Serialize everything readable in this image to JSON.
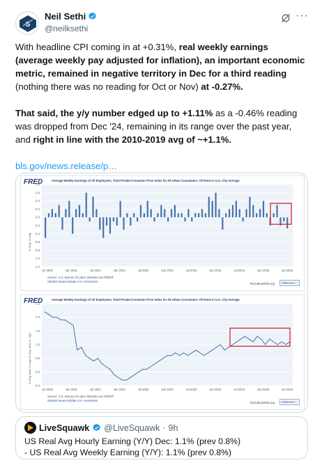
{
  "author": {
    "name": "Neil Sethi",
    "handle": "@neilksethi"
  },
  "tweet": {
    "p1": [
      {
        "t": "With headline CPI coming in at +0.31%, ",
        "b": false
      },
      {
        "t": "real weekly earnings (average weekly pay adjusted for inflation), an important economic metric, remained in negative territory in Dec for a third reading",
        "b": true
      },
      {
        "t": " (nothing there was no reading for Oct or Nov) ",
        "b": false
      },
      {
        "t": "at -0.27%.",
        "b": true
      }
    ],
    "p2": [
      {
        "t": "That said, the y/y number edged up to +1.11%",
        "b": true
      },
      {
        "t": " as a -0.46% reading was dropped from Dec '24, remaining in its range over the past year, and ",
        "b": false
      },
      {
        "t": "right in line with the 2010-2019 avg of ~+1.1%.",
        "b": true
      }
    ],
    "link": "bls.gov/news.release/p…"
  },
  "charts": {
    "logo": "FRED",
    "chart1": {
      "title": "Average Weekly Earnings of All Employees, Total Private-Consumer Price Index for All Urban Consumers: All Items in U.S. City Average",
      "ylabel": "% Chg. % Chg.",
      "yticks": [
        "0.8",
        "0.6",
        "0.4",
        "0.2",
        "0.0",
        "-0.2",
        "-0.4",
        "-0.6",
        "-0.8",
        "-1.0",
        "-1.2"
      ],
      "xticks": [
        "Jul 2020",
        "Jan 2021",
        "Jul 2021",
        "Jan 2022",
        "Jul 2022",
        "Jan 2023",
        "Jul 2023",
        "Jan 2024",
        "Jul 2024",
        "Jan 2025",
        "Jul 2025"
      ],
      "source": "Source: U.S. Bureau of Labor Statistics via FRED®",
      "recession": "Shaded areas indicate U.S. recessions",
      "url": "fred.stlouisfed.org",
      "fullscreen": "Fullscreen ⛶",
      "highlight_color": "#d9262c",
      "bar_color": "#4572a7"
    },
    "chart2": {
      "title": "Average Weekly Earnings of All Employees, Total Private-Consumer Price Index for All Urban Consumers: All Items in U.S. City Average",
      "ylabel": "% Chg. from Yr. Ago-% Chg. from Yr. Ago",
      "yticks": [
        "2.5",
        "2.0",
        "1.5",
        "1.0",
        "0.5",
        "0.0",
        "-0.5"
      ],
      "xticks": [
        "Jul 2020",
        "Jan 2021",
        "Jul 2021",
        "Jan 2022",
        "Jul 2022",
        "Jan 2023",
        "Jul 2023",
        "Jan 2024",
        "Jul 2024",
        "Jan 2025",
        "Jul 2025"
      ],
      "source": "Source: U.S. Bureau of Labor Statistics via FRED®",
      "recession": "Shaded areas indicate U.S. recessions",
      "url": "fred.stlouisfed.org",
      "fullscreen": "Fullscreen ⛶",
      "line_color": "#4572a7",
      "highlight_color": "#d9262c"
    }
  },
  "chart_data": [
    {
      "type": "bar",
      "title": "Average Weekly Earnings of All Employees, Total Private-Consumer Price Index for All Urban Consumers: All Items in U.S. City Average",
      "ylabel": "% Chg. % Chg.",
      "ylim": [
        -1.2,
        0.8
      ],
      "series": [
        {
          "values": [
            -0.5,
            0.1,
            0.2,
            0.1,
            0.3,
            -0.3,
            0.2,
            0.4,
            -0.4,
            0.2,
            0.3,
            0.1,
            0.6,
            -0.1,
            0.5,
            0.2,
            -0.3,
            -0.5,
            -0.2,
            -0.4,
            -0.1,
            -0.2,
            0.4,
            -0.3,
            0.1,
            -0.2,
            0.1,
            -0.1,
            0.3,
            0.1,
            0.4,
            0.2,
            -0.1,
            0.1,
            0.3,
            0.2,
            -0.1,
            0.2,
            0.3,
            0.1,
            0.1,
            -0.1,
            0.2,
            -0.1,
            0.1,
            0.1,
            0.2,
            0.1,
            0.5,
            0.4,
            0.6,
            0.2,
            -0.3,
            0.1,
            0.2,
            0.3,
            0.4,
            0.2,
            -0.1,
            0.2,
            0.5,
            0.3,
            0.1,
            0.2,
            0.4,
            0.1,
            -0.2,
            0.1,
            0.3,
            -0.2,
            -0.1,
            -0.27
          ]
        }
      ]
    },
    {
      "type": "line",
      "title": "Average Weekly Earnings of All Employees, Total Private-Consumer Price Index for All Urban Consumers: All Items in U.S. City Average",
      "ylabel": "% Chg. from Yr. Ago-% Chg. from Yr. Ago",
      "ylim": [
        -0.5,
        2.5
      ],
      "series": [
        {
          "values": [
            2.2,
            2.1,
            2.0,
            2.0,
            1.9,
            1.9,
            1.8,
            1.7,
            0.8,
            0.9,
            0.6,
            0.5,
            0.4,
            0.5,
            0.3,
            0.2,
            0.1,
            -0.1,
            -0.2,
            -0.3,
            -0.3,
            -0.2,
            -0.1,
            0.0,
            0.1,
            0.1,
            0.2,
            0.3,
            0.4,
            0.5,
            0.6,
            0.6,
            0.7,
            0.6,
            0.7,
            0.6,
            0.7,
            0.8,
            0.7,
            0.6,
            0.7,
            0.8,
            0.9,
            1.0,
            0.8,
            0.9,
            1.0,
            1.1,
            1.2,
            1.3,
            1.2,
            1.1,
            1.3,
            1.2,
            1.0,
            1.2,
            1.1,
            1.0,
            1.1,
            1.0,
            1.11
          ]
        }
      ]
    }
  ],
  "quote": {
    "name": "LiveSquawk",
    "handle": "@LiveSquawk",
    "dot": "·",
    "time": "9h",
    "line1": "US Real Avg Hourly Earning (Y/Y) Dec: 1.1% (prev 0.8%)",
    "line2": "- US Real Avg Weekly Earning (Y/Y): 1.1% (prev 0.8%)"
  },
  "icons": {
    "verified": "verified-badge-icon",
    "grok": "grok-icon",
    "more": "more-icon"
  }
}
